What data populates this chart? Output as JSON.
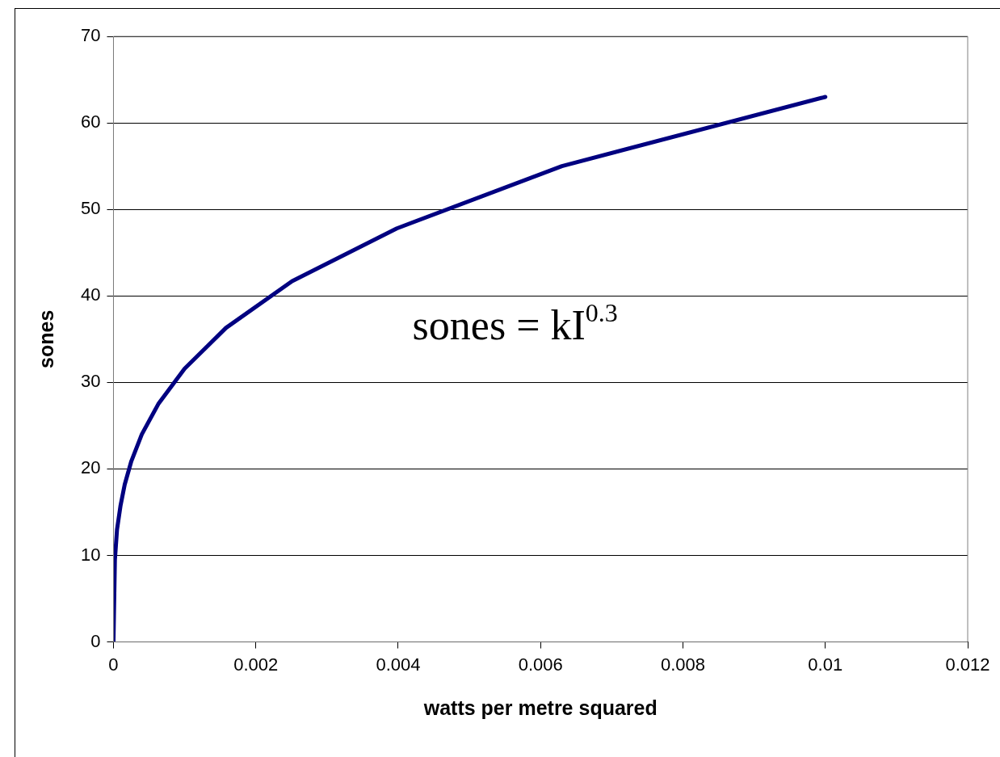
{
  "chart_data": {
    "type": "line",
    "xlabel": "watts per metre squared",
    "ylabel": "sones",
    "annotations": [
      "sones = kI$^{0.3}$"
    ],
    "series": [
      {
        "color": "#000080",
        "x": [
          0,
          2e-05,
          5e-05,
          0.0001,
          0.000158,
          0.000251,
          0.000398,
          0.00063,
          0.001,
          0.00158,
          0.00251,
          0.00398,
          0.0063,
          0.01
        ],
        "values": [
          0,
          9.5,
          13,
          15.8,
          18.2,
          20.9,
          24.0,
          27.5,
          31.6,
          36.3,
          41.7,
          47.8,
          55.0,
          63.0
        ]
      }
    ],
    "xlim": [
      0,
      0.012
    ],
    "xticks": [
      0,
      0.002,
      0.004,
      0.006,
      0.008,
      0.01,
      0.012
    ],
    "ylim": [
      0,
      70
    ],
    "yticks": [
      0,
      10,
      20,
      30,
      40,
      50,
      60,
      70
    ],
    "grid": "y",
    "legend": false,
    "marker": "none",
    "line_style": "solid"
  }
}
